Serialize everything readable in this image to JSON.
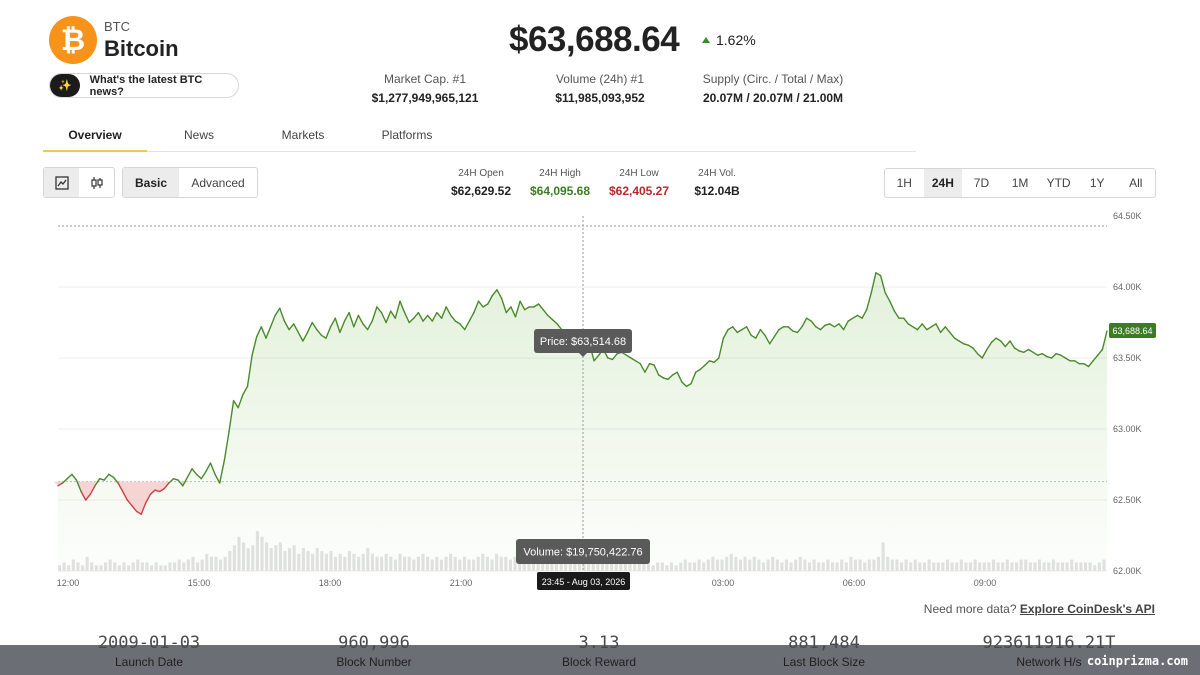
{
  "coin": {
    "symbol": "BTC",
    "name": "Bitcoin",
    "logo_glyph": "₿",
    "logo_color": "#f7931a"
  },
  "news_prompt": {
    "icon": "sparkle-icon",
    "label": "What's the latest BTC news?"
  },
  "price": {
    "value": "$63,688.64",
    "change": "1.62%",
    "direction": "up"
  },
  "stats": [
    {
      "label": "Market Cap. #1",
      "value": "$1,277,949,965,121"
    },
    {
      "label": "Volume (24h) #1",
      "value": "$11,985,093,952"
    },
    {
      "label": "Supply (Circ. / Total / Max)",
      "value": "20.07M / 20.07M / 21.00M"
    }
  ],
  "tabs": [
    "Overview",
    "News",
    "Markets",
    "Platforms"
  ],
  "active_tab": "Overview",
  "chart_type_buttons": [
    {
      "icon": "line-chart-icon",
      "active": true
    },
    {
      "icon": "candlestick-icon",
      "active": false
    }
  ],
  "modes": [
    "Basic",
    "Advanced"
  ],
  "active_mode": "Basic",
  "ohlc": [
    {
      "label": "24H Open",
      "value": "$62,629.52",
      "color": "#222222"
    },
    {
      "label": "24H High",
      "value": "$64,095.68",
      "color": "#3a7d22"
    },
    {
      "label": "24H Low",
      "value": "$62,405.27",
      "color": "#b52a2a"
    },
    {
      "label": "24H Vol.",
      "value": "$12.04B",
      "color": "#222222"
    }
  ],
  "ranges": [
    "1H",
    "24H",
    "7D",
    "1M",
    "YTD",
    "1Y",
    "All"
  ],
  "active_range": "24H",
  "chart_data": {
    "type": "line",
    "x_ticks": [
      "12:00",
      "15:00",
      "18:00",
      "21:00",
      "",
      "03:00",
      "06:00",
      "09:00"
    ],
    "y_ticks": [
      "64.50K",
      "64.00K",
      "63.50K",
      "63.00K",
      "62.50K",
      "62.00K"
    ],
    "ylim": [
      62000,
      64500
    ],
    "open_price": 62629.52,
    "current_label": "63,688.64",
    "tooltip_price": "Price: $63,514.68",
    "tooltip_volume": "Volume: $19,750,422.76",
    "tooltip_time": "23:45 - Aug 03, 2026",
    "line_color": "#4a8a2c",
    "down_color": "#d04040",
    "price_series": [
      62600,
      62620,
      62650,
      62680,
      62640,
      62560,
      62500,
      62540,
      62600,
      62650,
      62640,
      62680,
      62660,
      62620,
      62560,
      62500,
      62460,
      62420,
      62400,
      62480,
      62540,
      62570,
      62560,
      62580,
      62620,
      62650,
      62640,
      62600,
      62660,
      62720,
      62680,
      62650,
      62700,
      62760,
      62680,
      62620,
      62780,
      62980,
      63200,
      63150,
      63240,
      63300,
      63520,
      63650,
      63720,
      63640,
      63720,
      63800,
      63850,
      63760,
      63700,
      63740,
      63680,
      63620,
      63680,
      63750,
      63700,
      63660,
      63640,
      63720,
      63780,
      63680,
      63760,
      63820,
      63720,
      63800,
      63740,
      63700,
      63760,
      63860,
      63820,
      63750,
      63830,
      63780,
      63900,
      63820,
      63750,
      63780,
      63820,
      63760,
      63800,
      63760,
      63820,
      63780,
      63860,
      63800,
      63760,
      63740,
      63700,
      63760,
      63820,
      63900,
      63860,
      63880,
      63940,
      63980,
      63920,
      63820,
      63860,
      63790,
      63900,
      63840,
      63860,
      63860,
      63880,
      63840,
      63800,
      63770,
      63740,
      63700,
      63680,
      63700,
      63660,
      63640,
      63620,
      63600,
      63480,
      63520,
      63560,
      63500,
      63490,
      63530,
      63540,
      63520,
      63500,
      63480,
      63460,
      63400,
      63460,
      63450,
      63380,
      63360,
      63350,
      63380,
      63400,
      63330,
      63300,
      63320,
      63400,
      63420,
      63450,
      63480,
      63470,
      63500,
      63640,
      63700,
      63720,
      63680,
      63700,
      63720,
      63660,
      63640,
      63700,
      63660,
      63600,
      63650,
      63700,
      63720,
      63720,
      63690,
      63680,
      63720,
      63780,
      63760,
      63720,
      63700,
      63730,
      63740,
      63720,
      63740,
      63700,
      63760,
      63780,
      63800,
      63780,
      63840,
      63960,
      64100,
      64080,
      63960,
      63900,
      63830,
      63780,
      63780,
      63740,
      63720,
      63700,
      63740,
      63700,
      63720,
      63740,
      63680,
      63720,
      63680,
      63640,
      63620,
      63600,
      63590,
      63570,
      63530,
      63500,
      63560,
      63610,
      63640,
      63620,
      63580,
      63620,
      63570,
      63550,
      63540,
      63560,
      63540,
      63520,
      63530,
      63510,
      63500,
      63530,
      63520,
      63500,
      63480,
      63480,
      63460,
      63460,
      63440,
      63480,
      63520,
      63560,
      63690
    ],
    "volume_series": [
      2,
      3,
      2,
      4,
      3,
      2,
      5,
      3,
      2,
      2,
      3,
      4,
      3,
      2,
      3,
      2,
      3,
      4,
      3,
      3,
      2,
      3,
      2,
      2,
      3,
      3,
      4,
      3,
      4,
      5,
      3,
      4,
      6,
      5,
      5,
      4,
      5,
      7,
      9,
      12,
      10,
      8,
      9,
      14,
      12,
      10,
      8,
      9,
      10,
      7,
      8,
      9,
      6,
      8,
      7,
      6,
      8,
      7,
      6,
      7,
      5,
      6,
      5,
      7,
      6,
      5,
      6,
      8,
      6,
      5,
      5,
      6,
      5,
      4,
      6,
      5,
      5,
      4,
      5,
      6,
      5,
      4,
      5,
      4,
      5,
      6,
      5,
      4,
      5,
      4,
      4,
      5,
      6,
      5,
      4,
      6,
      5,
      5,
      4,
      5,
      4,
      4,
      5,
      4,
      3,
      4,
      5,
      4,
      3,
      4,
      3,
      4,
      3,
      3,
      4,
      3,
      6,
      4,
      5,
      4,
      3,
      4,
      3,
      3,
      3,
      3,
      4,
      3,
      3,
      2,
      3,
      3,
      2,
      3,
      2,
      3,
      4,
      3,
      3,
      4,
      3,
      4,
      5,
      4,
      4,
      5,
      6,
      5,
      4,
      5,
      4,
      5,
      4,
      3,
      4,
      5,
      4,
      3,
      4,
      3,
      4,
      5,
      4,
      3,
      4,
      3,
      3,
      4,
      3,
      3,
      4,
      3,
      5,
      4,
      4,
      3,
      4,
      4,
      5,
      10,
      5,
      4,
      4,
      3,
      4,
      3,
      4,
      3,
      3,
      4,
      3,
      3,
      3,
      4,
      3,
      3,
      4,
      3,
      3,
      4,
      3,
      3,
      3,
      4,
      3,
      3,
      4,
      3,
      3,
      4,
      4,
      3,
      3,
      4,
      3,
      3,
      4,
      3,
      3,
      3,
      4,
      3,
      3,
      3,
      3,
      2,
      3,
      4
    ]
  },
  "api_note": {
    "text": "Need more data?",
    "link": "Explore CoinDesk's API"
  },
  "footer_stats": [
    {
      "value": "2009-01-03",
      "label": "Launch Date"
    },
    {
      "value": "960,996",
      "label": "Block Number"
    },
    {
      "value": "3.13",
      "label": "Block Reward"
    },
    {
      "value": "881,484",
      "label": "Last Block Size"
    },
    {
      "value": "923611916.21T",
      "label": "Network H/s"
    }
  ],
  "watermark": "coinprizma.com"
}
